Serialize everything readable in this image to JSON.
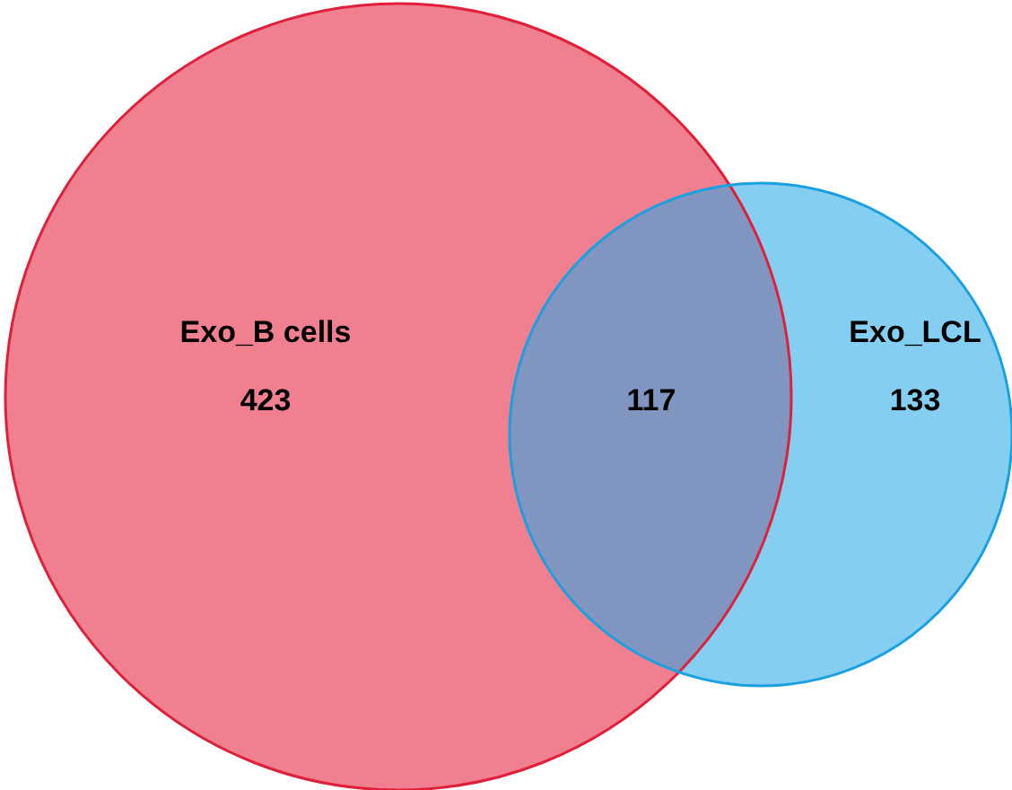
{
  "chart_data": {
    "type": "other",
    "categories": [
      "Exo_B cells",
      null,
      "Exo_LCL"
    ],
    "values": [
      423,
      117,
      133
    ],
    "data_labels": true,
    "colors": [
      "#f08090",
      "#8096c0",
      "#84cef2"
    ]
  }
}
